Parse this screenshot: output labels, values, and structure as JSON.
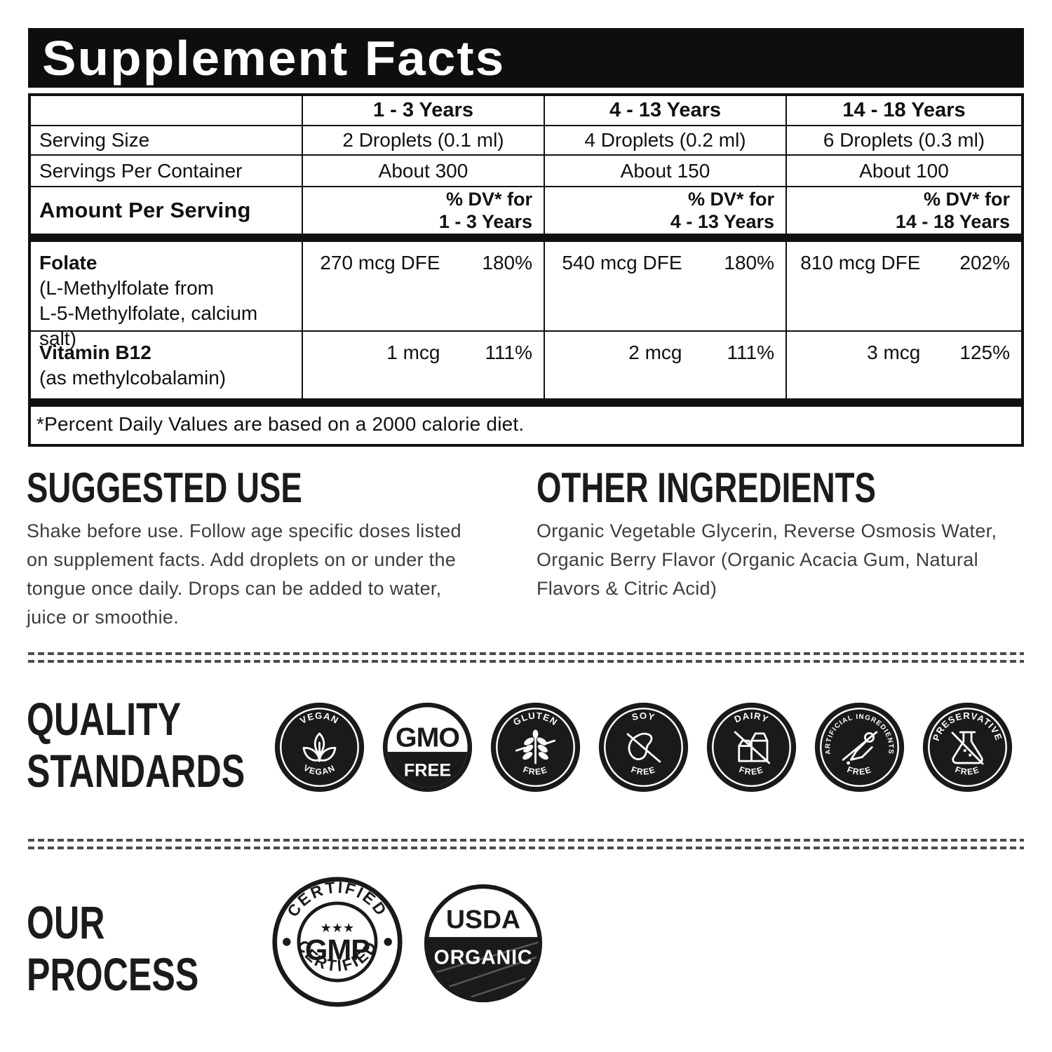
{
  "title": "Supplement Facts",
  "table": {
    "age_columns": [
      "1 - 3 Years",
      "4 - 13 Years",
      "14 - 18 Years"
    ],
    "serving_size": {
      "label": "Serving Size",
      "values": [
        "2 Droplets (0.1 ml)",
        "4 Droplets (0.2 ml)",
        "6 Droplets (0.3 ml)"
      ]
    },
    "servings_per_container": {
      "label": "Servings Per Container",
      "values": [
        "About 300",
        "About 150",
        "About 100"
      ]
    },
    "amount_per_serving_label": "Amount Per Serving",
    "dv_prefix": "% DV* for",
    "nutrients": [
      {
        "name": "Folate",
        "detail_lines": [
          "(L-Methylfolate from",
          "L-5-Methylfolate, calcium salt)"
        ],
        "amounts": [
          "270 mcg DFE",
          "540 mcg DFE",
          "810 mcg DFE"
        ],
        "dvs": [
          "180%",
          "180%",
          "202%"
        ]
      },
      {
        "name": "Vitamin B12",
        "detail_lines": [
          "(as methylcobalamin)"
        ],
        "amounts": [
          "1 mcg",
          "2 mcg",
          "3 mcg"
        ],
        "dvs": [
          "111%",
          "111%",
          "125%"
        ]
      }
    ],
    "footnote": "*Percent Daily Values are based on a 2000 calorie diet."
  },
  "suggested_use": {
    "heading": "SUGGESTED USE",
    "body": "Shake before use. Follow age specific doses listed on supplement facts. Add droplets on or under the tongue once daily. Drops can be added to water, juice or smoothie."
  },
  "other_ingredients": {
    "heading": "OTHER INGREDIENTS",
    "body": "Organic Vegetable Glycerin, Reverse Osmosis Water, Organic Berry Flavor (Organic Acacia Gum, Natural Flavors & Citric Acid)"
  },
  "quality_standards": {
    "heading_lines": [
      "QUALITY",
      "STANDARDS"
    ],
    "badges": [
      {
        "icon": "leaf-icon",
        "label_top": "VEGAN",
        "label_bottom": "VEGAN"
      },
      {
        "icon": "gmo-text",
        "label_top": "GMO",
        "label_bottom": "FREE",
        "style": "split"
      },
      {
        "icon": "wheat-icon",
        "label_top": "GLUTEN",
        "label_bottom": "FREE"
      },
      {
        "icon": "soy-icon",
        "label_top": "SOY",
        "label_bottom": "FREE"
      },
      {
        "icon": "milk-carton-icon",
        "label_top": "DAIRY",
        "label_bottom": "FREE"
      },
      {
        "icon": "dropper-icon",
        "label_top": "ARTIFICIAL INGREDIENTS",
        "label_bottom": "FREE"
      },
      {
        "icon": "flask-icon",
        "label_top": "PRESERVATIVE",
        "label_bottom": "FREE"
      }
    ]
  },
  "our_process": {
    "heading_lines": [
      "OUR",
      "PROCESS"
    ],
    "gmp_badge": {
      "ring_top": "CERTIFIED",
      "ring_bottom": "CERTIFIED",
      "center": "GMP",
      "stars": "★★★"
    },
    "usda_badge": {
      "top": "USDA",
      "bottom": "ORGANIC"
    }
  },
  "colors": {
    "ink": "#111111",
    "badge_bg": "#1a1a1a",
    "paper": "#ffffff",
    "body_text": "#3d3d3d"
  }
}
